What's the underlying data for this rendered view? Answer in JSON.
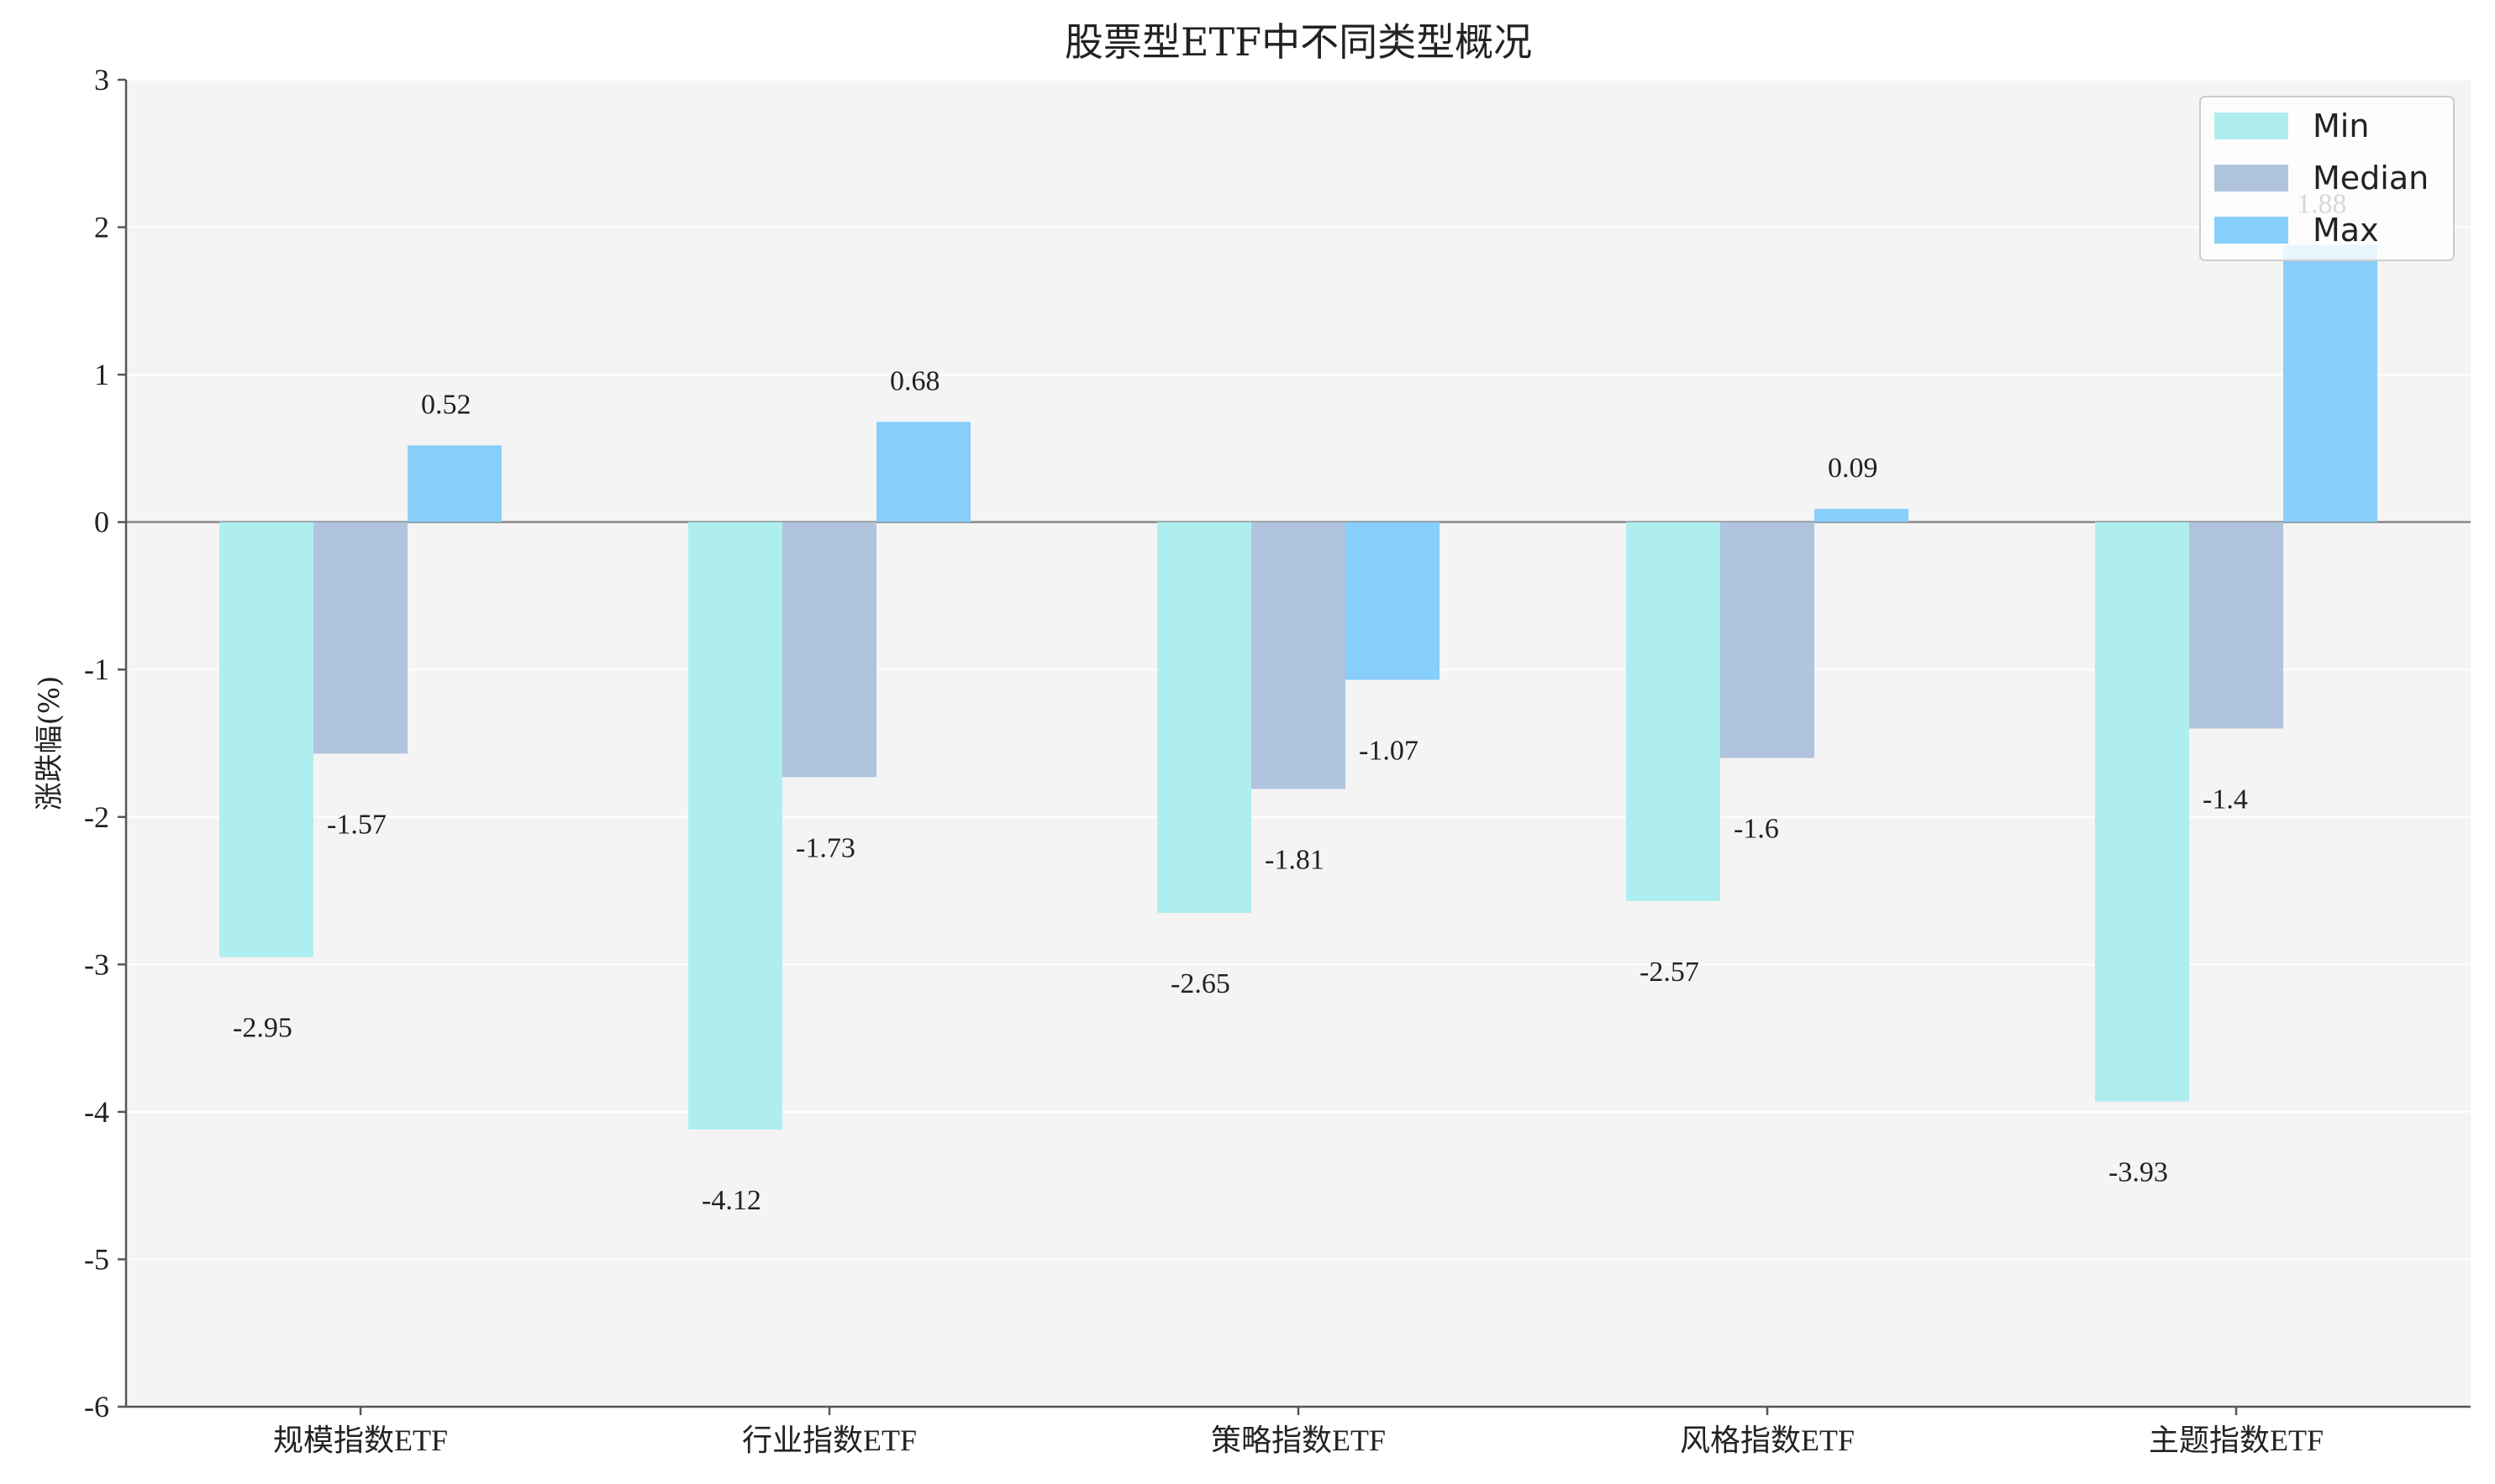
{
  "chart_data": {
    "type": "bar",
    "title": "股票型ETF中不同类型概况",
    "xlabel": "",
    "ylabel": "涨跌幅(%)",
    "ylim": [
      -6,
      3
    ],
    "yticks": [
      "3",
      "2",
      "1",
      "0",
      "-1",
      "-2",
      "-3",
      "-4",
      "-5",
      "-6"
    ],
    "yticks_values": [
      3,
      2,
      1,
      0,
      -1,
      -2,
      -3,
      -4,
      -5,
      -6
    ],
    "grid": true,
    "legend_position": "top-right",
    "categories": [
      "规模指数ETF",
      "行业指数ETF",
      "策略指数ETF",
      "风格指数ETF",
      "主题指数ETF"
    ],
    "series": [
      {
        "name": "Min",
        "color": "#AFEEEE",
        "values": [
          -2.95,
          -4.12,
          -2.65,
          -2.57,
          -3.93
        ],
        "labels": [
          "-2.95",
          "-4.12",
          "-2.65",
          "-2.57",
          "-3.93"
        ]
      },
      {
        "name": "Median",
        "color": "#B0C4DE",
        "values": [
          -1.57,
          -1.73,
          -1.81,
          -1.6,
          -1.4
        ],
        "labels": [
          "-1.57",
          "-1.73",
          "-1.81",
          "-1.6",
          "-1.4"
        ]
      },
      {
        "name": "Max",
        "color": "#87CEFA",
        "values": [
          0.52,
          0.68,
          -1.07,
          0.09,
          1.88
        ],
        "labels": [
          "0.52",
          "0.68",
          "-1.07",
          "0.09",
          "1.88"
        ]
      }
    ]
  }
}
